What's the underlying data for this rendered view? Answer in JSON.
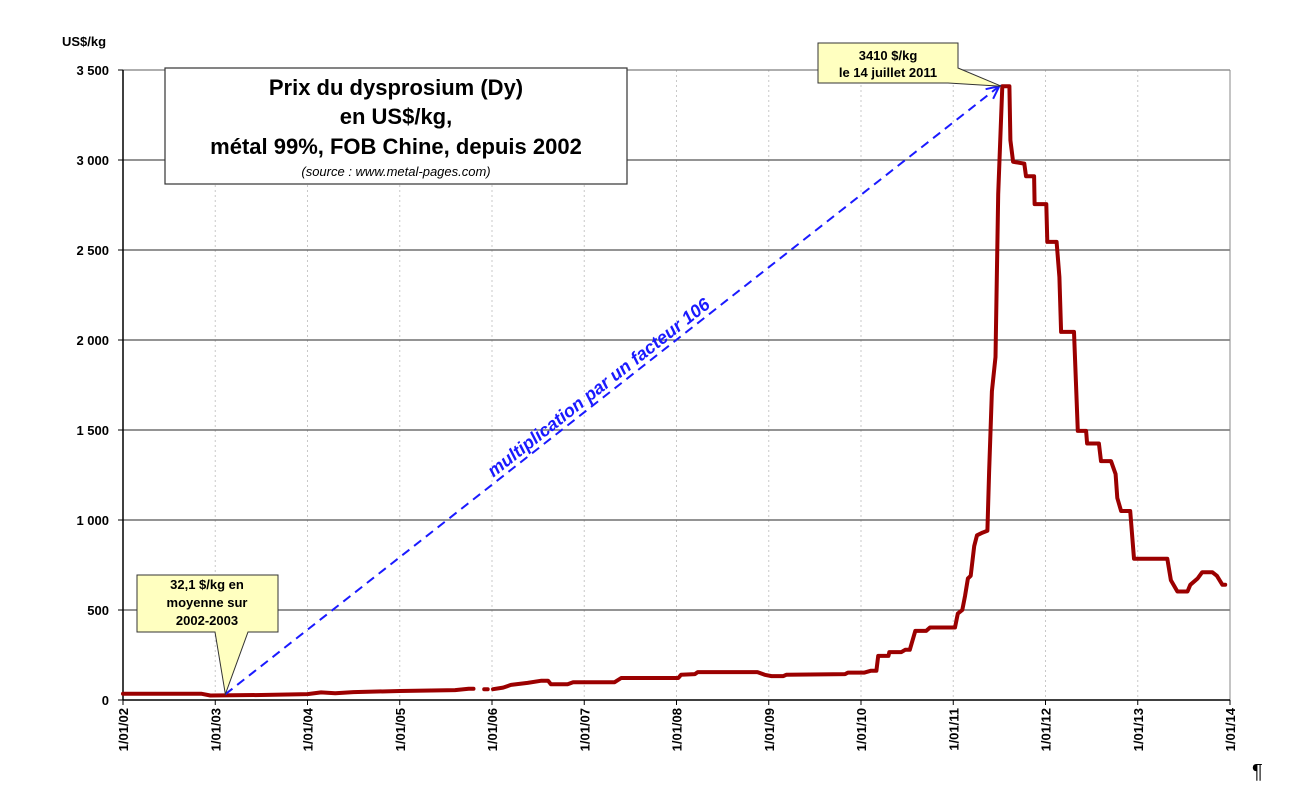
{
  "chart_data": {
    "type": "line",
    "title": [
      "Prix du dysprosium (Dy)",
      "en US$/kg,",
      "métal 99%, FOB Chine, depuis 2002"
    ],
    "subtitle": "(source : www.metal-pages.com)",
    "ylabel": "US$/kg",
    "xlabel": "",
    "ylim": [
      0,
      3500
    ],
    "xlim": [
      "2002-01-01",
      "2014-01-01"
    ],
    "y_ticks": [
      0,
      500,
      1000,
      1500,
      2000,
      2500,
      3000,
      3500
    ],
    "y_tick_labels": [
      "0",
      "500",
      "1 000",
      "1 500",
      "2 000",
      "2 500",
      "3 000",
      "3 500"
    ],
    "x_tick_labels": [
      "1/01/02",
      "1/01/03",
      "1/01/04",
      "1/01/05",
      "1/01/06",
      "1/01/07",
      "1/01/08",
      "1/01/09",
      "1/01/10",
      "1/01/11",
      "1/01/12",
      "1/01/13",
      "1/01/14"
    ],
    "x_ticks": [
      "2002-01-01",
      "2003-01-01",
      "2004-01-01",
      "2005-01-01",
      "2006-01-01",
      "2007-01-01",
      "2008-01-01",
      "2009-01-01",
      "2010-01-01",
      "2011-01-01",
      "2012-01-01",
      "2013-01-01",
      "2014-01-01"
    ],
    "grid": {
      "horizontal": true,
      "vertical": "dotted"
    },
    "series_color": "#9b0000",
    "series": [
      {
        "points": [
          [
            "2002-01-01",
            35
          ],
          [
            "2002-11-06",
            35
          ],
          [
            "2002-12-13",
            25
          ],
          [
            "2003-07-01",
            28
          ],
          [
            "2004-01-01",
            33
          ],
          [
            "2004-02-24",
            42
          ],
          [
            "2004-04-20",
            38
          ],
          [
            "2004-07-01",
            44
          ],
          [
            "2005-01-01",
            50
          ],
          [
            "2005-08-08",
            55
          ],
          [
            "2005-10-01",
            62
          ],
          [
            "2005-10-20",
            63
          ],
          null,
          [
            "2005-12-01",
            60
          ],
          [
            "2005-12-15",
            60
          ],
          null,
          [
            "2006-01-05",
            60
          ],
          [
            "2006-02-14",
            69
          ],
          [
            "2006-03-17",
            84
          ],
          [
            "2006-05-22",
            95
          ],
          [
            "2006-07-16",
            107
          ],
          [
            "2006-08-11",
            107
          ],
          [
            "2006-08-22",
            88
          ],
          [
            "2006-10-27",
            88
          ],
          [
            "2006-11-18",
            99
          ],
          [
            "2007-05-01",
            99
          ],
          [
            "2007-05-27",
            122
          ],
          [
            "2008-01-08",
            122
          ],
          [
            "2008-01-19",
            140
          ],
          [
            "2008-03-14",
            144
          ],
          [
            "2008-03-25",
            155
          ],
          [
            "2008-11-17",
            155
          ],
          [
            "2008-12-16",
            140
          ],
          [
            "2009-01-12",
            133
          ],
          [
            "2009-02-28",
            133
          ],
          [
            "2009-03-11",
            140
          ],
          [
            "2009-10-30",
            144
          ],
          [
            "2009-11-10",
            152
          ],
          [
            "2010-01-15",
            152
          ],
          [
            "2010-02-10",
            163
          ],
          [
            "2010-03-03",
            163
          ],
          [
            "2010-03-10",
            245
          ],
          [
            "2010-04-20",
            245
          ],
          [
            "2010-04-23",
            266
          ],
          [
            "2010-06-10",
            266
          ],
          [
            "2010-06-25",
            279
          ],
          [
            "2010-07-13",
            279
          ],
          [
            "2010-08-04",
            384
          ],
          [
            "2010-09-16",
            384
          ],
          [
            "2010-10-01",
            403
          ],
          [
            "2011-01-08",
            403
          ],
          [
            "2011-01-19",
            480
          ],
          [
            "2011-02-06",
            500
          ],
          [
            "2011-02-17",
            580
          ],
          [
            "2011-02-28",
            675
          ],
          [
            "2011-03-11",
            690
          ],
          [
            "2011-03-25",
            855
          ],
          [
            "2011-04-05",
            915
          ],
          [
            "2011-04-27",
            930
          ],
          [
            "2011-05-16",
            940
          ],
          [
            "2011-05-23",
            1265
          ],
          [
            "2011-06-03",
            1715
          ],
          [
            "2011-06-17",
            1905
          ],
          [
            "2011-06-28",
            2810
          ],
          [
            "2011-07-14",
            3410
          ],
          [
            "2011-08-11",
            3410
          ],
          [
            "2011-08-15",
            3110
          ],
          [
            "2011-08-26",
            2990
          ],
          [
            "2011-10-09",
            2980
          ],
          [
            "2011-10-16",
            2910
          ],
          [
            "2011-11-17",
            2910
          ],
          [
            "2011-11-19",
            2755
          ],
          [
            "2012-01-04",
            2755
          ],
          [
            "2012-01-08",
            2545
          ],
          [
            "2012-02-14",
            2545
          ],
          [
            "2012-02-25",
            2350
          ],
          [
            "2012-03-03",
            2045
          ],
          [
            "2012-04-23",
            2045
          ],
          [
            "2012-05-08",
            1495
          ],
          [
            "2012-06-10",
            1495
          ],
          [
            "2012-06-14",
            1425
          ],
          [
            "2012-07-31",
            1425
          ],
          [
            "2012-08-08",
            1327
          ],
          [
            "2012-09-17",
            1327
          ],
          [
            "2012-10-05",
            1255
          ],
          [
            "2012-10-12",
            1122
          ],
          [
            "2012-10-27",
            1050
          ],
          [
            "2012-12-02",
            1050
          ],
          [
            "2012-12-17",
            785
          ],
          [
            "2013-04-28",
            785
          ],
          [
            "2013-05-12",
            665
          ],
          [
            "2013-06-07",
            603
          ],
          [
            "2013-07-17",
            603
          ],
          [
            "2013-07-28",
            640
          ],
          [
            "2013-08-26",
            675
          ],
          [
            "2013-09-13",
            710
          ],
          [
            "2013-10-23",
            710
          ],
          [
            "2013-11-10",
            690
          ],
          [
            "2013-12-02",
            640
          ],
          [
            "2013-12-13",
            640
          ]
        ]
      }
    ],
    "annotations": {
      "peak": {
        "lines": [
          "3410 $/kg",
          "le 14 juillet 2011"
        ],
        "date": "2011-07-14",
        "value": 3410
      },
      "low": {
        "lines": [
          "32,1 $/kg en",
          "moyenne sur",
          "2002-2003"
        ],
        "date": "2003-02-10",
        "value": 32.1
      },
      "arrow_label": "multiplication par un facteur 106",
      "arrow_color": "#1a1aff",
      "callout_color": "#ffffc0"
    },
    "trailing_mark": "¶"
  }
}
